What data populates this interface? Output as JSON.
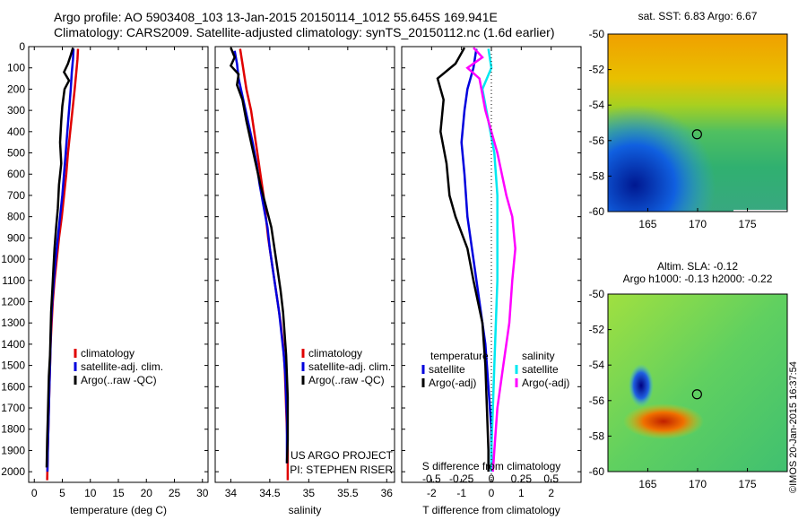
{
  "header": {
    "line1": "Argo profile: AO 5903408_103 13-Jan-2015 20150114_1012 55.645S 169.941E",
    "line2": "Climatology: CARS2009. Satellite-adjusted climatology: synTS_20150112.nc (1.6d earlier)"
  },
  "colors": {
    "climatology": "#e00000",
    "satellite": "#0000dd",
    "argo": "#000000",
    "sat_salinity": "#00e8f0",
    "argo_salinity": "#ff00ff"
  },
  "chart_data": [
    {
      "type": "line",
      "xlabel": "temperature (deg C)",
      "xlim": [
        -1,
        31
      ],
      "ylim": [
        2050,
        0
      ],
      "xticks": [
        0,
        5,
        10,
        15,
        20,
        25,
        30
      ],
      "yticks": [
        0,
        100,
        200,
        300,
        400,
        500,
        600,
        700,
        800,
        900,
        1000,
        1100,
        1200,
        1300,
        1400,
        1500,
        1600,
        1700,
        1800,
        1900,
        2000
      ],
      "legend": [
        "climatology",
        "satellite-adj. clim.",
        "Argo(..raw -QC)"
      ],
      "series": [
        {
          "name": "climatology",
          "color": "#e00000",
          "points": [
            [
              7.8,
              10
            ],
            [
              7.7,
              60
            ],
            [
              7.5,
              120
            ],
            [
              7.2,
              200
            ],
            [
              6.8,
              300
            ],
            [
              6.4,
              400
            ],
            [
              6.0,
              500
            ],
            [
              5.7,
              600
            ],
            [
              5.3,
              700
            ],
            [
              4.9,
              800
            ],
            [
              4.4,
              900
            ],
            [
              4.0,
              1000
            ],
            [
              3.6,
              1100
            ],
            [
              3.3,
              1200
            ],
            [
              3.1,
              1300
            ],
            [
              2.9,
              1400
            ],
            [
              2.8,
              1500
            ],
            [
              2.7,
              1600
            ],
            [
              2.6,
              1700
            ],
            [
              2.5,
              1800
            ],
            [
              2.4,
              1900
            ],
            [
              2.3,
              2040
            ]
          ]
        },
        {
          "name": "satellite-adj. clim.",
          "color": "#0000dd",
          "points": [
            [
              7.0,
              10
            ],
            [
              6.9,
              60
            ],
            [
              6.7,
              120
            ],
            [
              6.5,
              200
            ],
            [
              6.2,
              300
            ],
            [
              5.9,
              400
            ],
            [
              5.6,
              500
            ],
            [
              5.3,
              600
            ],
            [
              5.0,
              700
            ],
            [
              4.6,
              800
            ],
            [
              4.2,
              900
            ],
            [
              3.8,
              1000
            ],
            [
              3.5,
              1100
            ],
            [
              3.2,
              1200
            ],
            [
              3.0,
              1300
            ],
            [
              2.9,
              1400
            ],
            [
              2.8,
              1500
            ],
            [
              2.7,
              1600
            ],
            [
              2.6,
              1700
            ],
            [
              2.5,
              1800
            ],
            [
              2.4,
              1900
            ],
            [
              2.35,
              2000
            ]
          ]
        },
        {
          "name": "Argo(..raw -QC)",
          "color": "#000000",
          "points": [
            [
              6.9,
              5
            ],
            [
              6.5,
              40
            ],
            [
              6.0,
              80
            ],
            [
              5.3,
              120
            ],
            [
              6.2,
              160
            ],
            [
              5.4,
              200
            ],
            [
              5.0,
              280
            ],
            [
              4.8,
              350
            ],
            [
              4.6,
              450
            ],
            [
              4.8,
              550
            ],
            [
              4.4,
              650
            ],
            [
              4.2,
              760
            ],
            [
              3.9,
              850
            ],
            [
              3.6,
              950
            ],
            [
              3.4,
              1050
            ],
            [
              3.2,
              1150
            ],
            [
              3.0,
              1250
            ],
            [
              2.9,
              1350
            ],
            [
              2.8,
              1450
            ],
            [
              2.6,
              1550
            ],
            [
              2.5,
              1650
            ],
            [
              2.4,
              1750
            ],
            [
              2.3,
              1850
            ],
            [
              2.2,
              1980
            ]
          ]
        }
      ]
    },
    {
      "type": "line",
      "xlabel": "salinity",
      "xlim": [
        33.8,
        36.1
      ],
      "ylim": [
        2050,
        0
      ],
      "xticks": [
        34,
        34.5,
        35,
        35.5,
        36
      ],
      "legend": [
        "climatology",
        "satellite-adj. clim.",
        "Argo(..raw -QC)"
      ],
      "annotation": [
        "US ARGO PROJECT",
        "PI: STEPHEN RISER"
      ],
      "series": [
        {
          "name": "climatology",
          "color": "#e00000",
          "points": [
            [
              34.12,
              10
            ],
            [
              34.15,
              80
            ],
            [
              34.2,
              200
            ],
            [
              34.26,
              300
            ],
            [
              34.3,
              400
            ],
            [
              34.34,
              500
            ],
            [
              34.38,
              600
            ],
            [
              34.42,
              700
            ],
            [
              34.45,
              800
            ],
            [
              34.48,
              900
            ],
            [
              34.52,
              1000
            ],
            [
              34.56,
              1100
            ],
            [
              34.6,
              1200
            ],
            [
              34.64,
              1300
            ],
            [
              34.67,
              1400
            ],
            [
              34.69,
              1500
            ],
            [
              34.7,
              1600
            ],
            [
              34.71,
              1700
            ],
            [
              34.72,
              1800
            ],
            [
              34.73,
              1900
            ],
            [
              34.73,
              2040
            ]
          ]
        },
        {
          "name": "satellite-adj. clim.",
          "color": "#0000dd",
          "points": [
            [
              34.05,
              20
            ],
            [
              34.08,
              80
            ],
            [
              34.1,
              150
            ],
            [
              34.16,
              250
            ],
            [
              34.22,
              350
            ],
            [
              34.28,
              450
            ],
            [
              34.33,
              550
            ],
            [
              34.37,
              650
            ],
            [
              34.42,
              750
            ],
            [
              34.47,
              850
            ],
            [
              34.5,
              950
            ],
            [
              34.54,
              1050
            ],
            [
              34.58,
              1150
            ],
            [
              34.62,
              1250
            ],
            [
              34.65,
              1350
            ],
            [
              34.68,
              1450
            ],
            [
              34.7,
              1550
            ],
            [
              34.71,
              1650
            ],
            [
              34.72,
              1750
            ],
            [
              34.72,
              1850
            ],
            [
              34.72,
              1960
            ]
          ]
        },
        {
          "name": "Argo(..raw -QC)",
          "color": "#000000",
          "points": [
            [
              34.0,
              5
            ],
            [
              34.05,
              50
            ],
            [
              34.0,
              90
            ],
            [
              34.1,
              130
            ],
            [
              34.08,
              180
            ],
            [
              34.15,
              250
            ],
            [
              34.2,
              350
            ],
            [
              34.26,
              450
            ],
            [
              34.32,
              550
            ],
            [
              34.38,
              650
            ],
            [
              34.45,
              750
            ],
            [
              34.52,
              850
            ],
            [
              34.56,
              950
            ],
            [
              34.6,
              1050
            ],
            [
              34.64,
              1150
            ],
            [
              34.67,
              1250
            ],
            [
              34.69,
              1350
            ],
            [
              34.71,
              1450
            ],
            [
              34.72,
              1550
            ],
            [
              34.73,
              1650
            ],
            [
              34.73,
              1750
            ],
            [
              34.73,
              1850
            ],
            [
              34.72,
              1960
            ]
          ]
        }
      ]
    },
    {
      "type": "line",
      "xlabel": "T difference from climatology",
      "xlabel_top": "S difference from climatology",
      "xlim": [
        -3,
        3
      ],
      "ylim": [
        2050,
        0
      ],
      "xticks": [
        -2,
        -1,
        0,
        1,
        2
      ],
      "xticks_top_labels": [
        "-0.5",
        "-0.25",
        "0",
        "0.25",
        "0.5"
      ],
      "xticks_top_values": [
        -2,
        -1,
        0,
        1,
        2
      ],
      "legend_temperature": {
        "title": "temperature",
        "items": [
          "satellite",
          "Argo(-adj)"
        ]
      },
      "legend_salinity": {
        "title": "salinity",
        "items": [
          "satellite",
          "Argo(-adj)"
        ]
      },
      "series": [
        {
          "name": "satellite",
          "group": "temperature",
          "color": "#0000dd",
          "points": [
            [
              -0.5,
              10
            ],
            [
              -0.6,
              100
            ],
            [
              -0.8,
              200
            ],
            [
              -0.9,
              300
            ],
            [
              -1.0,
              450
            ],
            [
              -0.9,
              600
            ],
            [
              -0.8,
              800
            ],
            [
              -0.6,
              1000
            ],
            [
              -0.4,
              1200
            ],
            [
              -0.2,
              1400
            ],
            [
              -0.1,
              1600
            ],
            [
              0,
              1800
            ],
            [
              0,
              2000
            ]
          ]
        },
        {
          "name": "Argo(-adj)",
          "group": "temperature",
          "color": "#000000",
          "points": [
            [
              -0.9,
              5
            ],
            [
              -1.2,
              80
            ],
            [
              -1.8,
              150
            ],
            [
              -1.6,
              250
            ],
            [
              -1.7,
              400
            ],
            [
              -1.5,
              550
            ],
            [
              -1.4,
              700
            ],
            [
              -1.2,
              800
            ],
            [
              -0.8,
              950
            ],
            [
              -0.6,
              1100
            ],
            [
              -0.3,
              1300
            ],
            [
              -0.2,
              1500
            ],
            [
              -0.15,
              1700
            ],
            [
              -0.1,
              1900
            ],
            [
              -0.1,
              2000
            ]
          ]
        },
        {
          "name": "satellite",
          "group": "salinity",
          "color": "#00e8f0",
          "points": [
            [
              -0.1,
              10
            ],
            [
              0,
              100
            ],
            [
              -0.3,
              200
            ],
            [
              -0.1,
              350
            ],
            [
              0.1,
              500
            ],
            [
              0.2,
              700
            ],
            [
              0.2,
              900
            ],
            [
              0.2,
              1100
            ],
            [
              0.15,
              1300
            ],
            [
              0.1,
              1500
            ],
            [
              0.05,
              1700
            ],
            [
              0,
              1900
            ],
            [
              0,
              2000
            ]
          ]
        },
        {
          "name": "Argo(-adj)",
          "group": "salinity",
          "color": "#ff00ff",
          "points": [
            [
              -0.6,
              5
            ],
            [
              -0.3,
              50
            ],
            [
              -0.8,
              100
            ],
            [
              -0.4,
              150
            ],
            [
              -0.2,
              300
            ],
            [
              0.2,
              500
            ],
            [
              0.5,
              700
            ],
            [
              0.7,
              800
            ],
            [
              0.8,
              950
            ],
            [
              0.7,
              1100
            ],
            [
              0.6,
              1300
            ],
            [
              0.4,
              1500
            ],
            [
              0.2,
              1700
            ],
            [
              0.1,
              1900
            ],
            [
              0.05,
              2000
            ]
          ]
        }
      ]
    },
    {
      "type": "heatmap",
      "title": "sat. SST: 6.83 Argo: 6.67",
      "xlim": [
        161,
        179
      ],
      "ylim": [
        -60,
        -50
      ],
      "xticks": [
        165,
        170,
        175
      ],
      "yticks": [
        -50,
        -52,
        -54,
        -56,
        -58,
        -60
      ],
      "marker": {
        "lon": 169.941,
        "lat": -55.645
      }
    },
    {
      "type": "heatmap",
      "title": "Altim. SLA: -0.12",
      "subtitle": "Argo h1000: -0.13 h2000: -0.22",
      "xlim": [
        161,
        179
      ],
      "ylim": [
        -60,
        -50
      ],
      "xticks": [
        165,
        170,
        175
      ],
      "yticks": [
        -50,
        -52,
        -54,
        -56,
        -58,
        -60
      ],
      "marker": {
        "lon": 169.941,
        "lat": -55.645
      }
    }
  ],
  "footer_stamp": "©IMOS 20-Jan-2015 16:37:54"
}
